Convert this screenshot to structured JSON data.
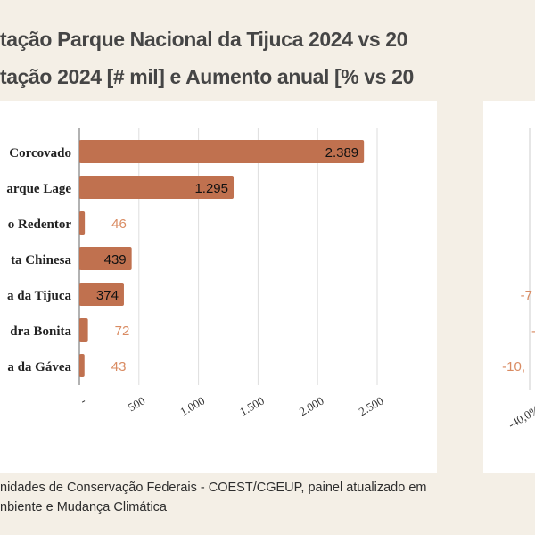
{
  "title": "tação Parque Nacional da Tijuca 2024 vs 20",
  "subtitle": "tação 2024 [# mil] e Aumento anual [% vs 20",
  "source_line1": "nidades de Conservação Federais - COEST/CGEUP, painel atualizado em",
  "source_line2": "nbiente e Mudança Climática",
  "colors": {
    "bar": "#c0714f",
    "label_outside": "#d98b62",
    "label_inside": "#111111",
    "text": "#454545",
    "background": "#f4efe6"
  },
  "chart_data": [
    {
      "type": "bar",
      "orientation": "horizontal",
      "categories": [
        "Corcovado",
        "arque Lage",
        "o Redentor",
        "ta Chinesa",
        "a da Tijuca",
        "dra Bonita",
        "a da Gávea"
      ],
      "values": [
        2389,
        1295,
        46,
        439,
        374,
        72,
        43
      ],
      "data_labels": [
        "2.389",
        "1.295",
        "46",
        "439",
        "374",
        "72",
        "43"
      ],
      "xlim": [
        0,
        2500
      ],
      "xticks": [
        0,
        500,
        1000,
        1500,
        2000,
        2500
      ],
      "xtick_labels": [
        "-",
        "500",
        "1.000",
        "1.500",
        "2.000",
        "2.500"
      ],
      "grid": true
    },
    {
      "type": "bar",
      "orientation": "horizontal",
      "visible_data_labels": [
        {
          "row": 5,
          "text": "-7"
        },
        {
          "row": 6,
          "text": "-"
        },
        {
          "row": 7,
          "text": "-10,"
        }
      ],
      "xtick_labels": [
        "-40,0%"
      ]
    }
  ]
}
